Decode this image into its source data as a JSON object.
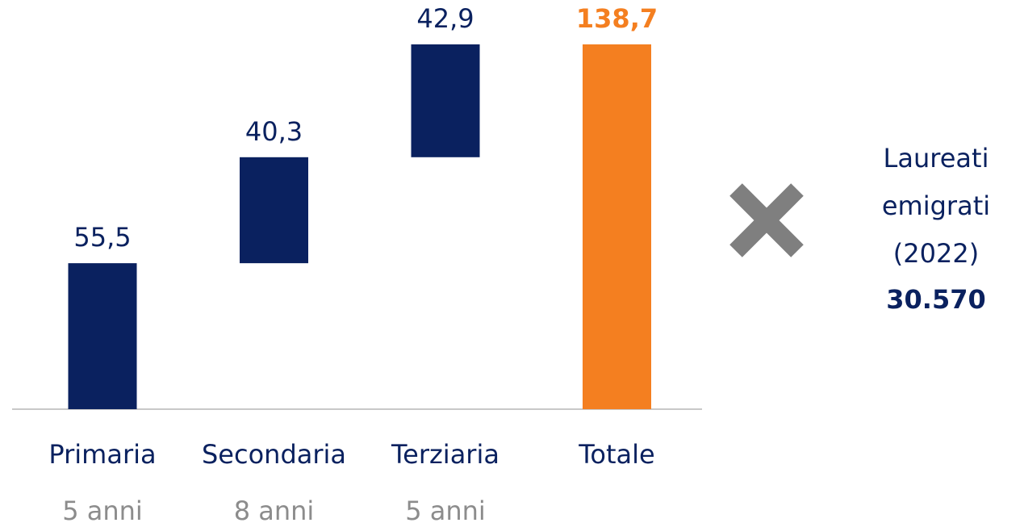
{
  "chart_data": {
    "type": "waterfall",
    "categories": [
      "Primaria",
      "Secondaria",
      "Terziaria"
    ],
    "sublabels": [
      "5 anni",
      "8 anni",
      "5 anni"
    ],
    "values": [
      55.5,
      40.3,
      42.9
    ],
    "value_labels": [
      "55,5",
      "40,3",
      "42,9"
    ],
    "color": "#0a215f",
    "total": {
      "label": "Totale",
      "value": 138.7,
      "value_label": "138,7",
      "color": "#f47f20"
    },
    "annotation": {
      "lines": [
        "Laureati",
        "emigrati",
        "(2022)"
      ],
      "value": "30.570"
    }
  }
}
